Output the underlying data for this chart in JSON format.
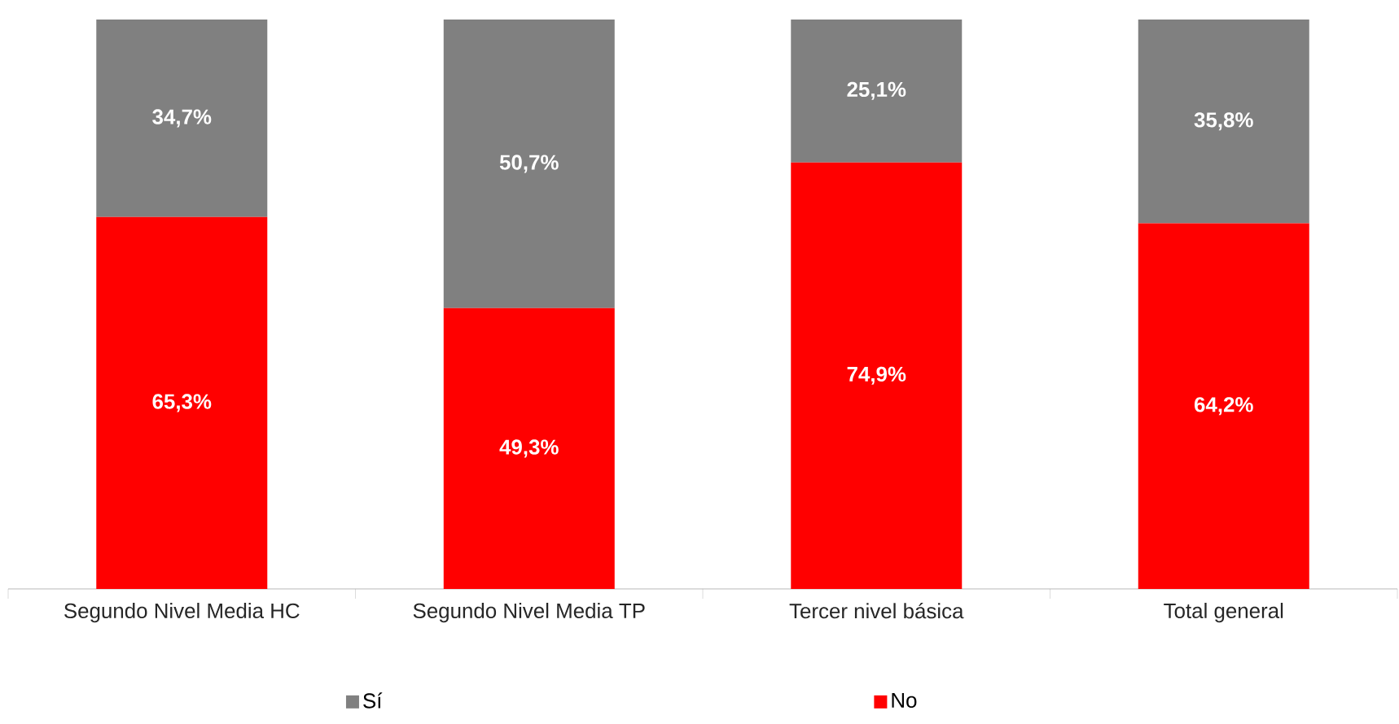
{
  "chart_data": {
    "type": "bar",
    "stacked": true,
    "legend": "bottom",
    "categories": [
      "Segundo Nivel Media HC",
      "Segundo Nivel Media TP",
      "Tercer nivel básica",
      "Total general"
    ],
    "series": [
      {
        "name": "No",
        "color": "#ff0000",
        "values": [
          65.3,
          49.3,
          74.9,
          64.2
        ],
        "value_labels": [
          "65,3%",
          "49,3%",
          "74,9%",
          "64,2%"
        ]
      },
      {
        "name": "Sí",
        "color": "#808080",
        "values": [
          34.7,
          50.7,
          25.1,
          35.8
        ],
        "value_labels": [
          "34,7%",
          "50,7%",
          "25,1%",
          "35,8%"
        ]
      }
    ]
  }
}
